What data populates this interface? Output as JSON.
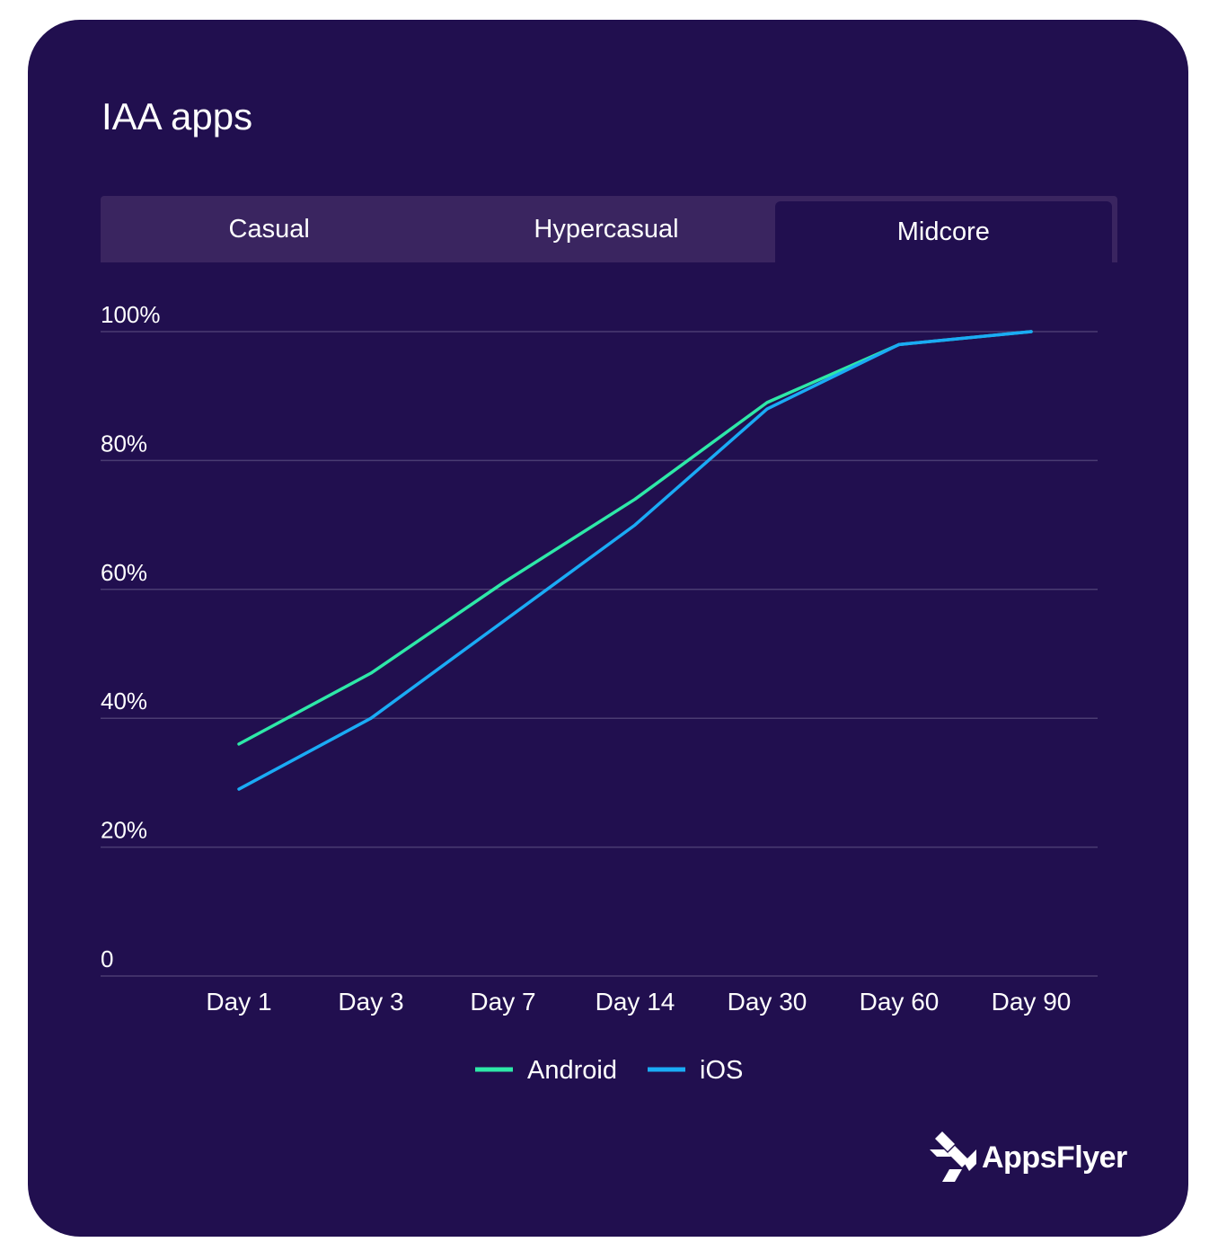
{
  "title": "IAA apps",
  "tabs": [
    {
      "label": "Casual",
      "active": false
    },
    {
      "label": "Hypercasual",
      "active": false
    },
    {
      "label": "Midcore",
      "active": true
    }
  ],
  "logo": {
    "text": "AppsFlyer",
    "icon": "appsflyer-logo-icon"
  },
  "colors": {
    "background": "#210f4f",
    "tab_bar": "#3a2560",
    "android": "#2ee8a8",
    "ios": "#1aabf5",
    "grid": "#4a3c72"
  },
  "chart_data": {
    "type": "line",
    "categories": [
      "Day 1",
      "Day 3",
      "Day 7",
      "Day 14",
      "Day 30",
      "Day 60",
      "Day 90"
    ],
    "ylim": [
      0,
      100
    ],
    "yticks": [
      0,
      20,
      40,
      60,
      80,
      100
    ],
    "ytick_labels": [
      "0",
      "20%",
      "40%",
      "60%",
      "80%",
      "100%"
    ],
    "grid": true,
    "legend_position": "bottom-center",
    "series": [
      {
        "name": "Android",
        "color": "#2ee8a8",
        "values": [
          36,
          47,
          61,
          74,
          89,
          98,
          100
        ]
      },
      {
        "name": "iOS",
        "color": "#1aabf5",
        "values": [
          29,
          40,
          55,
          70,
          88,
          98,
          100
        ]
      }
    ]
  }
}
